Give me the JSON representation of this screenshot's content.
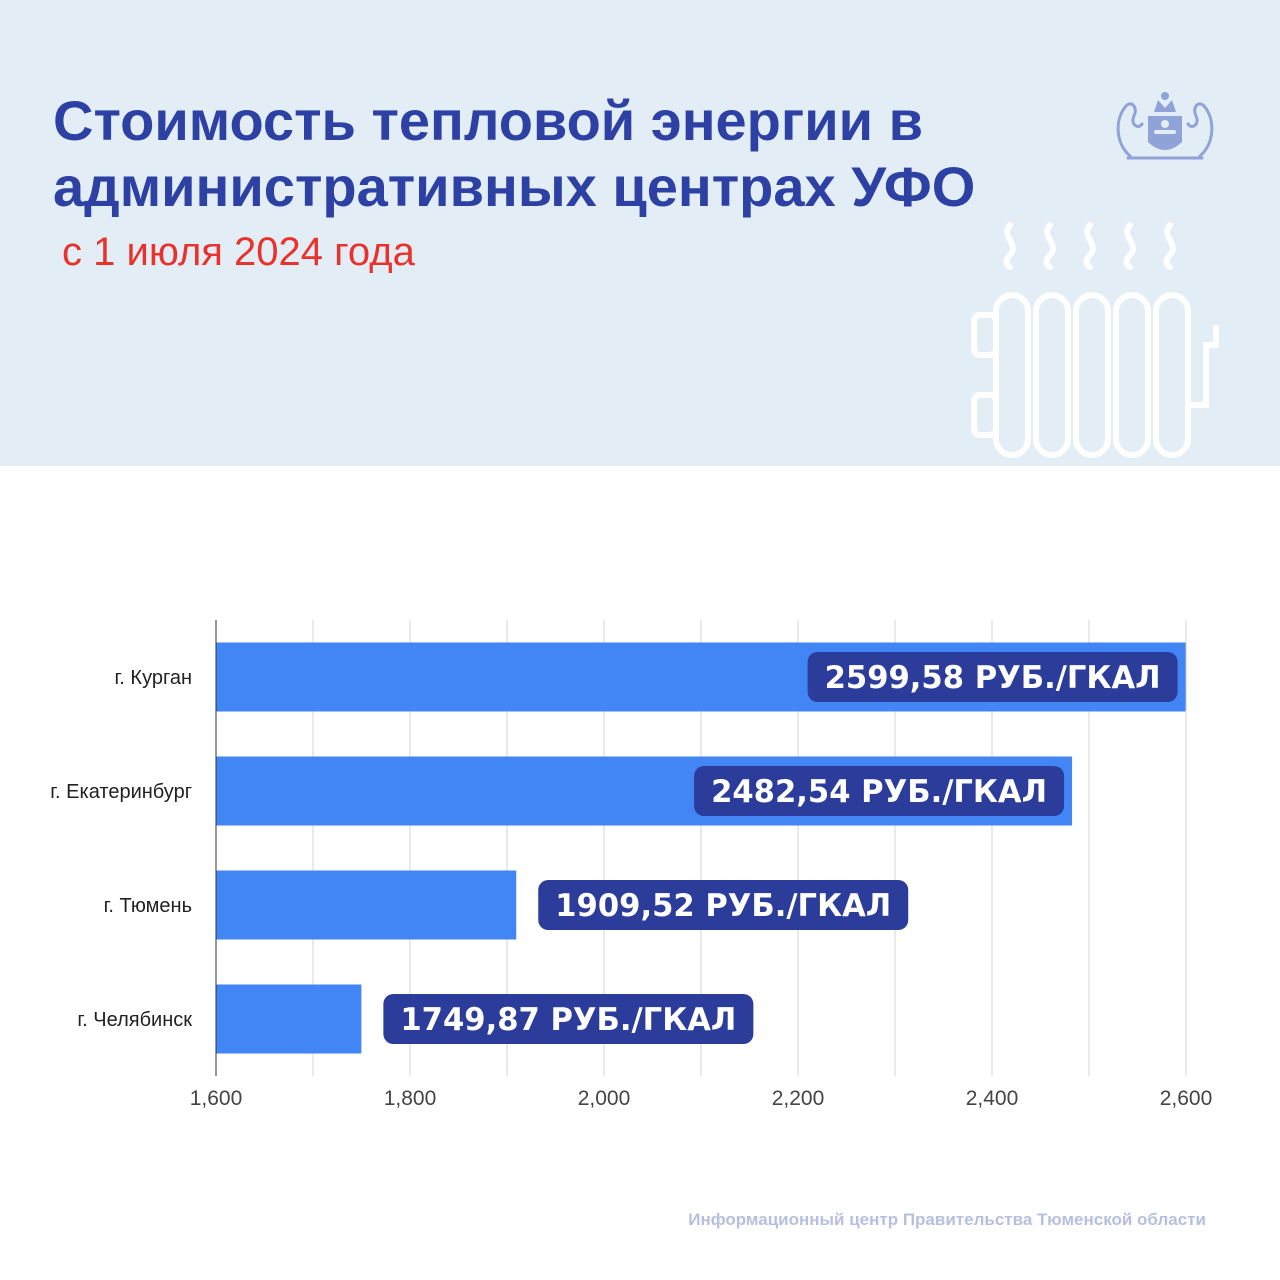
{
  "header": {
    "title": "Стоимость тепловой энергии в административных центрах УФО",
    "subtitle": "с 1 июля 2024 года"
  },
  "icons": {
    "emblem": "tyumen-coat-of-arms-icon",
    "radiator": "radiator-heat-icon"
  },
  "colors": {
    "header_bg": "#e3edf5",
    "title": "#2d40a4",
    "subtitle": "#e8322c",
    "bar": "#4285f4",
    "label_pill": "#2b3c9a"
  },
  "chart_data": {
    "type": "bar",
    "orientation": "horizontal",
    "categories": [
      "г. Курган",
      "г. Екатеринбург",
      "г. Тюмень",
      "г. Челябинск"
    ],
    "values": [
      2599.58,
      2482.54,
      1909.52,
      1749.87
    ],
    "data_labels": [
      "2599,58 РУБ./ГКАЛ",
      "2482,54 РУБ./ГКАЛ",
      "1909,52 РУБ./ГКАЛ",
      "1749,87 РУБ./ГКАЛ"
    ],
    "xlim": [
      1600,
      2600
    ],
    "xticks": [
      1600,
      1800,
      2000,
      2200,
      2400,
      2600
    ],
    "xtick_labels": [
      "1,600",
      "1,800",
      "2,000",
      "2,200",
      "2,400",
      "2,600"
    ],
    "grid": true,
    "legend": "none"
  },
  "footer": {
    "source": "Информационный центр Правительства Тюменской области"
  }
}
